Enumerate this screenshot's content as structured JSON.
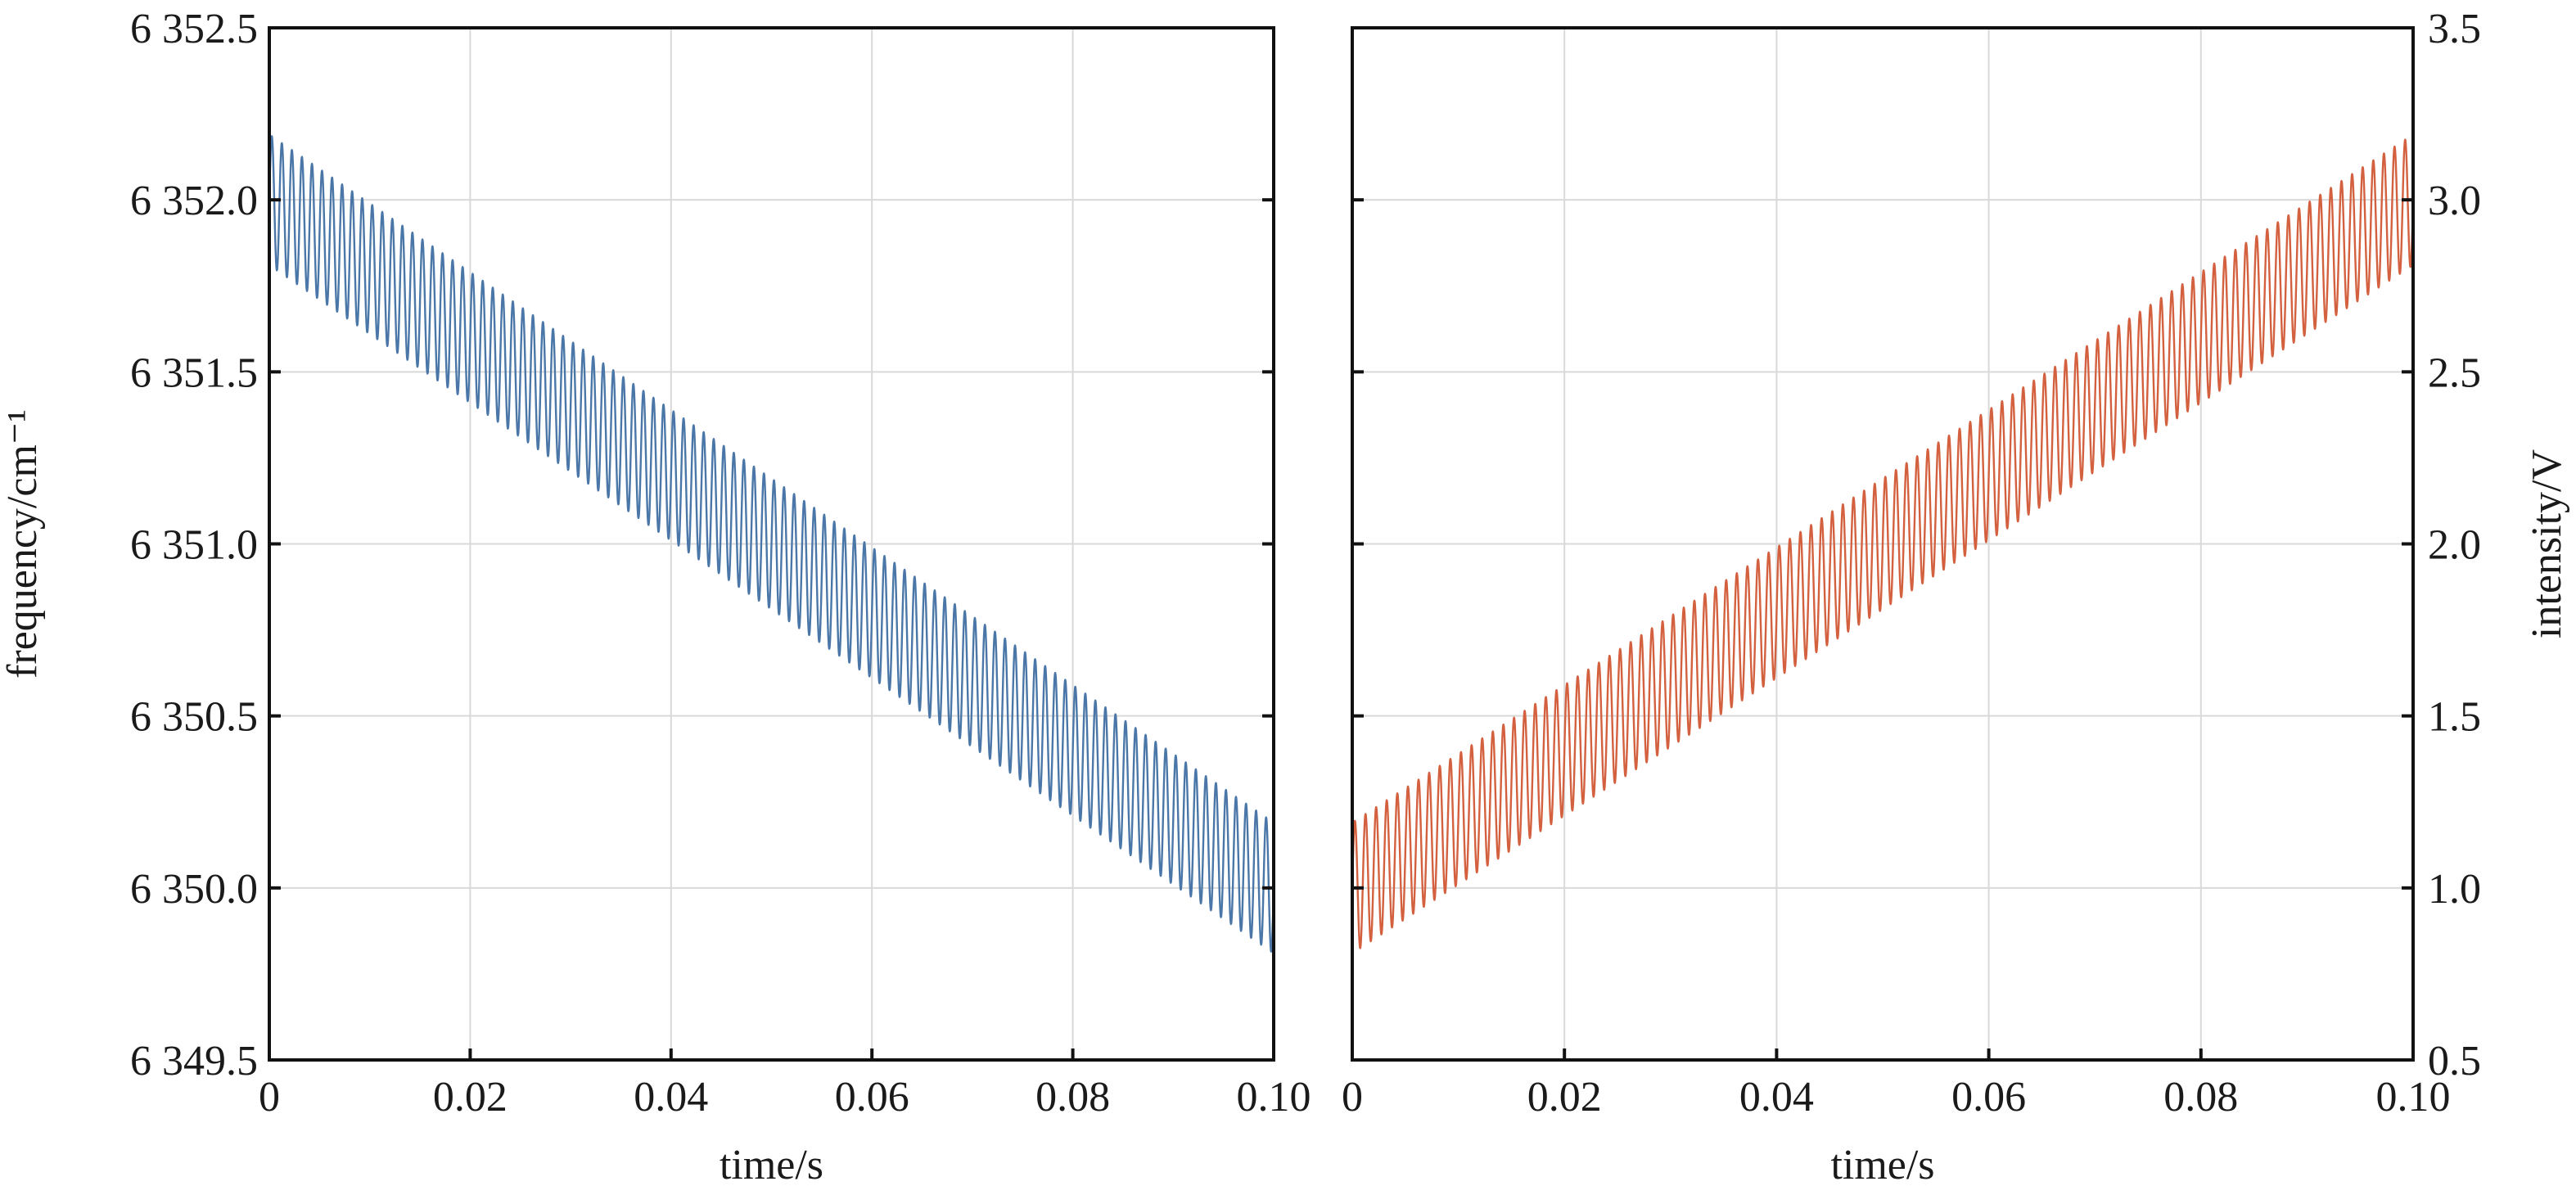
{
  "chart_data": [
    {
      "type": "line",
      "xlabel": "time/s",
      "ylabel": "frequency/cm⁻¹",
      "xlim": [
        0,
        0.1
      ],
      "ylim": [
        6349.5,
        6352.5
      ],
      "xticks": [
        0,
        0.02,
        0.04,
        0.06,
        0.08,
        0.1
      ],
      "xtick_labels": [
        "0",
        "0.02",
        "0.04",
        "0.06",
        "0.08",
        "0.10"
      ],
      "yticks": [
        6349.5,
        6350.0,
        6350.5,
        6351.0,
        6351.5,
        6352.0,
        6352.5
      ],
      "ytick_labels": [
        "6 349.5",
        "6 350.0",
        "6 350.5",
        "6 351.0",
        "6 351.5",
        "6 352.0",
        "6 352.5"
      ],
      "y_axis_side": "left",
      "grid": true,
      "series": [
        {
          "color": "#4a77a8",
          "trend_start": 6352.0,
          "trend_end": 6350.0,
          "sine_amplitude": 0.19,
          "sine_frequency_hz": 1000,
          "x_start": 0,
          "x_end": 0.1
        }
      ]
    },
    {
      "type": "line",
      "xlabel": "time/s",
      "ylabel": "intensity/V",
      "xlim": [
        0,
        0.1
      ],
      "ylim": [
        0.5,
        3.5
      ],
      "xticks": [
        0,
        0.02,
        0.04,
        0.06,
        0.08,
        0.1
      ],
      "xtick_labels": [
        "0",
        "0.02",
        "0.04",
        "0.06",
        "0.08",
        "0.10"
      ],
      "yticks": [
        0.5,
        1.0,
        1.5,
        2.0,
        2.5,
        3.0,
        3.5
      ],
      "ytick_labels": [
        "0.5",
        "1.0",
        "1.5",
        "2.0",
        "2.5",
        "3.0",
        "3.5"
      ],
      "y_axis_side": "right",
      "grid": true,
      "series": [
        {
          "color": "#d3603e",
          "trend_start": 1.0,
          "trend_end": 3.0,
          "sine_amplitude": 0.19,
          "sine_frequency_hz": 1000,
          "x_start": 0,
          "x_end": 0.1
        }
      ]
    }
  ]
}
